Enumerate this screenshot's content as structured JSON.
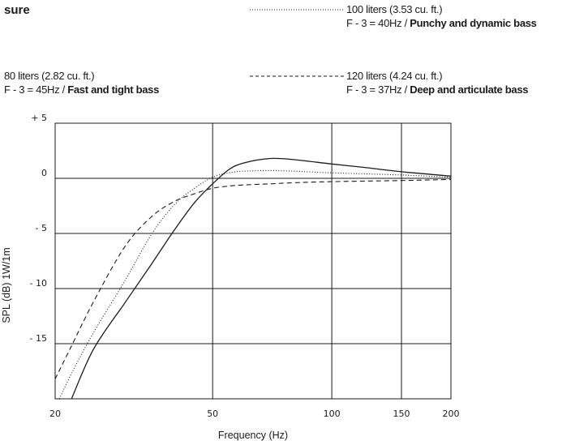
{
  "header": {
    "title_fragment": "sure"
  },
  "legend": [
    {
      "volume": "80 liters (2.82 cu. ft.)",
      "f3_prefix": "F - 3 = 45Hz / ",
      "f3_desc": "Fast and tight bass",
      "style": "solid"
    },
    {
      "volume": "100 liters (3.53 cu. ft.)",
      "f3_prefix": "F - 3 = 40Hz / ",
      "f3_desc": "Punchy and dynamic bass",
      "style": "dotted"
    },
    {
      "volume": "120 liters (4.24 cu. ft.)",
      "f3_prefix": "F - 3 = 37Hz / ",
      "f3_desc": "Deep and articulate bass",
      "style": "dashed"
    }
  ],
  "chart_data": {
    "type": "line",
    "xlabel": "Frequency (Hz)",
    "ylabel": "SPL (dB) 1W/1m",
    "x_scale": "log",
    "xlim": [
      20,
      200
    ],
    "ylim": [
      -20,
      5
    ],
    "x_ticks": [
      20,
      50,
      100,
      150,
      200
    ],
    "x_tick_labels": [
      "20",
      "50",
      "100",
      "150",
      "200"
    ],
    "y_ticks": [
      5,
      0,
      -5,
      -10,
      -15
    ],
    "y_tick_labels": [
      "+ 5",
      "0",
      "- 5",
      "- 10",
      "- 15"
    ],
    "grid": true,
    "series": [
      {
        "legend_index": 0,
        "x": [
          22,
          25,
          30,
          35,
          40,
          45,
          50,
          55,
          60,
          70,
          80,
          100,
          120,
          150,
          200
        ],
        "y": [
          -20,
          -15.5,
          -11.3,
          -7.8,
          -4.7,
          -2.2,
          -0.5,
          0.8,
          1.4,
          1.8,
          1.7,
          1.3,
          1.0,
          0.6,
          0.2
        ]
      },
      {
        "legend_index": 1,
        "x": [
          20.5,
          22,
          25,
          30,
          35,
          40,
          45,
          50,
          55,
          60,
          70,
          80,
          100,
          150,
          200
        ],
        "y": [
          -20,
          -17.7,
          -14,
          -9.3,
          -5.1,
          -2.4,
          -0.9,
          0.1,
          0.5,
          0.65,
          0.7,
          0.65,
          0.5,
          0.3,
          0.1
        ]
      },
      {
        "legend_index": 2,
        "x": [
          20,
          22,
          25,
          30,
          35,
          40,
          45,
          50,
          55,
          60,
          70,
          80,
          100,
          150,
          200
        ],
        "y": [
          -18.2,
          -15.2,
          -11.2,
          -6.2,
          -3.5,
          -2.1,
          -1.4,
          -0.9,
          -0.7,
          -0.6,
          -0.5,
          -0.4,
          -0.3,
          -0.2,
          -0.1
        ]
      }
    ]
  }
}
